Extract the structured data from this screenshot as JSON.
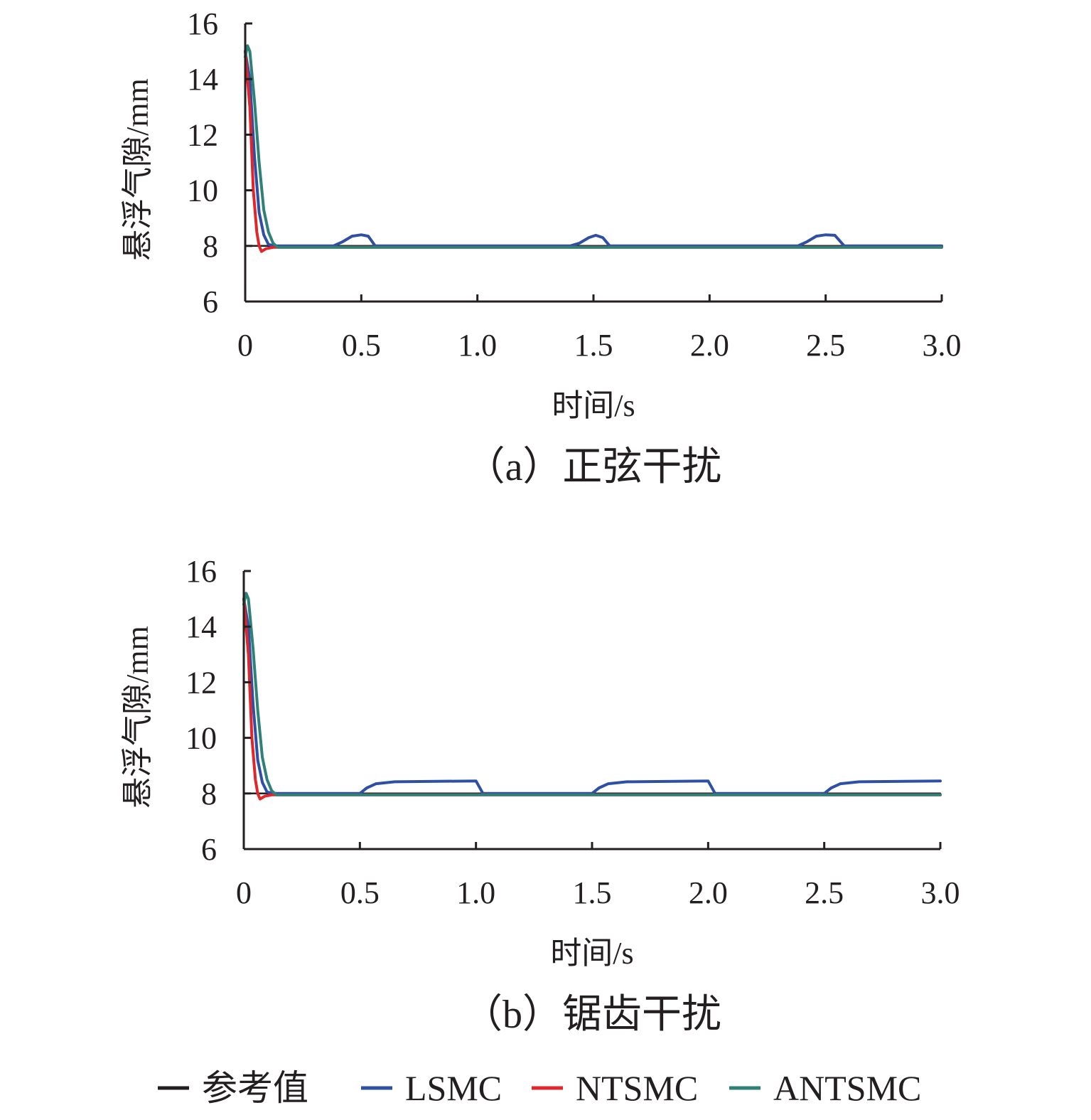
{
  "legend": [
    {
      "label": "参考值",
      "color": "#231f20"
    },
    {
      "label": "LSMC",
      "color": "#2e4fa3"
    },
    {
      "label": "NTSMC",
      "color": "#e0262b"
    },
    {
      "label": "ANTSMC",
      "color": "#2f8077"
    }
  ],
  "chart_data": [
    {
      "type": "line",
      "caption": "（a）正弦干扰",
      "xlabel": "时间/s",
      "ylabel": "悬浮气隙/mm",
      "xlim": [
        0,
        3.0
      ],
      "ylim": [
        6,
        16
      ],
      "x_ticks": [
        "0",
        "0.5",
        "1.0",
        "1.5",
        "2.0",
        "2.5",
        "3.0"
      ],
      "y_ticks": [
        "6",
        "8",
        "10",
        "12",
        "14",
        "16"
      ],
      "series": [
        {
          "name": "参考值",
          "color": "#231f20",
          "points": [
            [
              0,
              8
            ],
            [
              3.0,
              8
            ]
          ]
        },
        {
          "name": "LSMC",
          "color": "#2e4fa3",
          "points": [
            [
              0,
              15
            ],
            [
              0.02,
              14.0
            ],
            [
              0.04,
              11.2
            ],
            [
              0.06,
              9.2
            ],
            [
              0.08,
              8.4
            ],
            [
              0.1,
              8.05
            ],
            [
              0.13,
              8.0
            ],
            [
              0.38,
              8.0
            ],
            [
              0.42,
              8.15
            ],
            [
              0.46,
              8.35
            ],
            [
              0.5,
              8.4
            ],
            [
              0.53,
              8.35
            ],
            [
              0.56,
              8.0
            ],
            [
              1.4,
              8.0
            ],
            [
              1.44,
              8.1
            ],
            [
              1.48,
              8.3
            ],
            [
              1.51,
              8.38
            ],
            [
              1.54,
              8.3
            ],
            [
              1.57,
              8.0
            ],
            [
              2.38,
              8.0
            ],
            [
              2.42,
              8.15
            ],
            [
              2.46,
              8.35
            ],
            [
              2.5,
              8.4
            ],
            [
              2.54,
              8.38
            ],
            [
              2.58,
              8.0
            ],
            [
              3.0,
              8.0
            ]
          ]
        },
        {
          "name": "NTSMC",
          "color": "#e0262b",
          "points": [
            [
              0,
              15
            ],
            [
              0.02,
              13.0
            ],
            [
              0.035,
              10.0
            ],
            [
              0.05,
              8.5
            ],
            [
              0.06,
              8.0
            ],
            [
              0.07,
              7.8
            ],
            [
              0.09,
              7.9
            ],
            [
              0.12,
              7.95
            ],
            [
              3.0,
              7.95
            ]
          ]
        },
        {
          "name": "ANTSMC",
          "color": "#2f8077",
          "points": [
            [
              0,
              14.8
            ],
            [
              0.01,
              15.2
            ],
            [
              0.02,
              15.0
            ],
            [
              0.04,
              13.2
            ],
            [
              0.06,
              11.0
            ],
            [
              0.08,
              9.3
            ],
            [
              0.1,
              8.5
            ],
            [
              0.12,
              8.1
            ],
            [
              0.14,
              7.95
            ],
            [
              0.2,
              7.95
            ],
            [
              3.0,
              7.95
            ]
          ]
        }
      ]
    },
    {
      "type": "line",
      "caption": "（b）锯齿干扰",
      "xlabel": "时间/s",
      "ylabel": "悬浮气隙/mm",
      "xlim": [
        0,
        3.0
      ],
      "ylim": [
        6,
        16
      ],
      "x_ticks": [
        "0",
        "0.5",
        "1.0",
        "1.5",
        "2.0",
        "2.5",
        "3.0"
      ],
      "y_ticks": [
        "6",
        "8",
        "10",
        "12",
        "14",
        "16"
      ],
      "series": [
        {
          "name": "参考值",
          "color": "#231f20",
          "points": [
            [
              0,
              8
            ],
            [
              3.0,
              8
            ]
          ]
        },
        {
          "name": "LSMC",
          "color": "#2e4fa3",
          "points": [
            [
              0,
              15
            ],
            [
              0.02,
              14.0
            ],
            [
              0.04,
              11.2
            ],
            [
              0.06,
              9.2
            ],
            [
              0.08,
              8.4
            ],
            [
              0.1,
              8.05
            ],
            [
              0.13,
              8.0
            ],
            [
              0.5,
              8.0
            ],
            [
              0.53,
              8.2
            ],
            [
              0.57,
              8.35
            ],
            [
              0.65,
              8.42
            ],
            [
              1.0,
              8.45
            ],
            [
              1.03,
              8.0
            ],
            [
              1.5,
              8.0
            ],
            [
              1.53,
              8.2
            ],
            [
              1.57,
              8.35
            ],
            [
              1.65,
              8.42
            ],
            [
              2.0,
              8.45
            ],
            [
              2.03,
              8.0
            ],
            [
              2.5,
              8.0
            ],
            [
              2.53,
              8.2
            ],
            [
              2.57,
              8.35
            ],
            [
              2.65,
              8.42
            ],
            [
              3.0,
              8.45
            ]
          ]
        },
        {
          "name": "NTSMC",
          "color": "#e0262b",
          "points": [
            [
              0,
              15
            ],
            [
              0.02,
              13.0
            ],
            [
              0.035,
              10.0
            ],
            [
              0.05,
              8.5
            ],
            [
              0.06,
              8.0
            ],
            [
              0.07,
              7.8
            ],
            [
              0.09,
              7.9
            ],
            [
              0.12,
              7.95
            ],
            [
              3.0,
              7.95
            ]
          ]
        },
        {
          "name": "ANTSMC",
          "color": "#2f8077",
          "points": [
            [
              0,
              14.8
            ],
            [
              0.01,
              15.2
            ],
            [
              0.02,
              15.0
            ],
            [
              0.04,
              13.2
            ],
            [
              0.06,
              11.0
            ],
            [
              0.08,
              9.3
            ],
            [
              0.1,
              8.5
            ],
            [
              0.12,
              8.1
            ],
            [
              0.14,
              7.95
            ],
            [
              0.2,
              7.95
            ],
            [
              3.0,
              7.95
            ]
          ]
        }
      ]
    }
  ]
}
